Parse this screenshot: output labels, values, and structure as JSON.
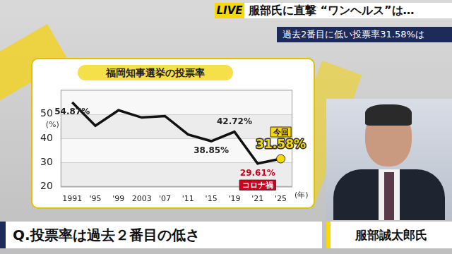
{
  "page": {
    "live": "LIVE",
    "headline": "服部氏に直撃 “ワンヘルス”は…",
    "subheadline": "過去2番目に低い投票率31.58%は",
    "question": "Q.投票率は過去２番目の低さ",
    "name": "服部誠太郎氏"
  },
  "chart_data": {
    "type": "line",
    "title": "福岡知事選挙の投票率",
    "ylabel": "(%)",
    "xlabel": "(年)",
    "categories": [
      "1991",
      "'95",
      "'99",
      "2003",
      "'07",
      "'11",
      "'15",
      "'19",
      "'21",
      "'25"
    ],
    "values": [
      54.87,
      45.2,
      51.6,
      48.6,
      49.2,
      41.6,
      38.85,
      42.72,
      29.61,
      31.58
    ],
    "value_labels": [
      "54.87%",
      null,
      null,
      null,
      null,
      null,
      "38.85%",
      "42.72%",
      "29.61%",
      "31.58%"
    ],
    "data_labels": true,
    "color": "#111111",
    "colors": [
      "#111111",
      "#111111",
      "#111111",
      "#111111",
      "#111111",
      "#111111",
      "#111111",
      "#111111",
      "#d0021b",
      "#f5d90a"
    ],
    "ylim": [
      20,
      60
    ],
    "yticks": [
      20,
      30,
      40,
      50
    ],
    "grid": true,
    "annotations": [
      {
        "text": "今回",
        "category": "'25"
      },
      {
        "text": "コロナ禍",
        "category": "'21"
      }
    ]
  }
}
